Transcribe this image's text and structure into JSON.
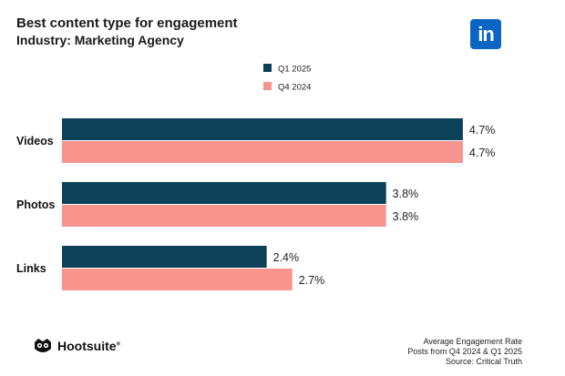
{
  "header": {
    "title": "Best content type for engagement",
    "subtitle": "Industry: Marketing Agency",
    "logo_text": "in",
    "logo_icon": "linkedin-icon"
  },
  "colors": {
    "q1_2025": "#0d4159",
    "q4_2024": "#f7948d",
    "linkedin": "#0a66c2"
  },
  "chart_data": {
    "type": "bar",
    "orientation": "horizontal",
    "categories": [
      "Videos",
      "Photos",
      "Links"
    ],
    "series": [
      {
        "name": "Q1 2025",
        "values": [
          4.7,
          3.8,
          2.4
        ],
        "labels": [
          "4.7%",
          "3.8%",
          "2.4%"
        ]
      },
      {
        "name": "Q4 2024",
        "values": [
          4.7,
          3.8,
          2.7
        ],
        "labels": [
          "4.7%",
          "3.8%",
          "2.7%"
        ]
      }
    ],
    "legend_position": "top-center",
    "xlim": [
      0,
      5.0
    ]
  },
  "footer": {
    "brand": "Hootsuite",
    "brand_reg": "®",
    "brand_icon": "owl-icon",
    "notes": [
      "Average Engagement Rate",
      "Posts from Q4 2024 & Q1 2025",
      "Source: Critical Truth"
    ]
  }
}
